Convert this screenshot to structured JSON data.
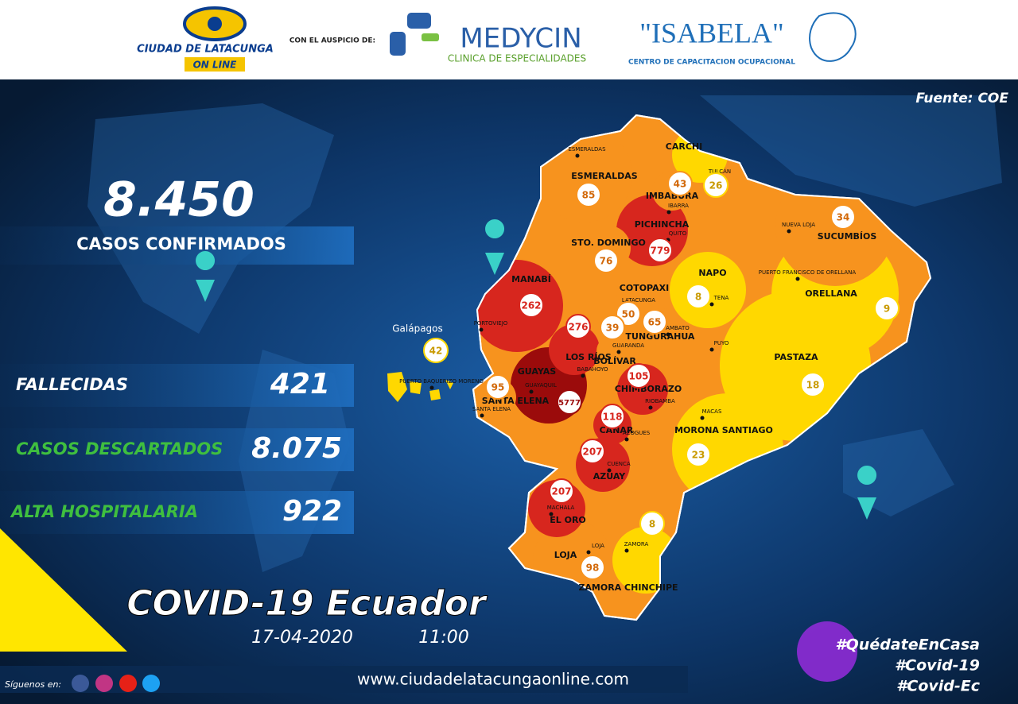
{
  "header": {
    "logo_title": "CIUDAD DE LATACUNGA",
    "logo_subtitle": "ON LINE",
    "sponsor_label": "CON EL AUSPICIO DE:",
    "sponsor1_name": "MEDYCIN",
    "sponsor1_tagline": "CLINICA DE ESPECIALIDADES",
    "sponsor2_name": "\"ISABELA\"",
    "sponsor2_tagline": "CENTRO DE CAPACITACION OCUPACIONAL"
  },
  "source": "Fuente: COE",
  "confirmed": {
    "value": "8.450",
    "label": "CASOS CONFIRMADOS"
  },
  "stats": [
    {
      "label": "FALLECIDAS",
      "value": "421",
      "color": "#ffffff"
    },
    {
      "label": "CASOS DESCARTADOS",
      "value": "8.075",
      "color": "#3fbf3f"
    },
    {
      "label": "ALTA HOSPITALARIA",
      "value": "922",
      "color": "#3fbf3f"
    }
  ],
  "title": "COVID-19 Ecuador",
  "date": "17-04-2020",
  "time": "11:00",
  "provinces": [
    {
      "name": "ESMERALDAS",
      "cases": 85,
      "city": "ESMERALDAS",
      "color": "#f7931e"
    },
    {
      "name": "CARCHI",
      "cases": 26,
      "city": "TULCÁN",
      "color": "#ffd800"
    },
    {
      "name": "IMBABURA",
      "cases": 43,
      "city": "IBARRA",
      "color": "#f7931e"
    },
    {
      "name": "PICHINCHA",
      "cases": 779,
      "city": "QUITO",
      "color": "#d7261e"
    },
    {
      "name": "SUCUMBÍOS",
      "cases": 34,
      "city": "NUEVA LOJA",
      "color": "#f7931e"
    },
    {
      "name": "STO. DOMINGO",
      "cases": 76,
      "city": null,
      "color": "#f7931e"
    },
    {
      "name": "MANABÍ",
      "cases": 262,
      "city": "PORTOVIEJO",
      "color": "#d7261e"
    },
    {
      "name": "NAPO",
      "cases": 8,
      "city": "TENA",
      "color": "#ffd800"
    },
    {
      "name": "ORELLANA",
      "cases": 9,
      "city": "PUERTO FRANCISCO DE ORELLANA",
      "color": "#ffd800"
    },
    {
      "name": "COTOPAXI",
      "cases": 50,
      "city": "LATACUNGA",
      "color": "#f7931e"
    },
    {
      "name": "TUNGURAHUA",
      "cases": 65,
      "city": "AMBATO",
      "color": "#f7931e"
    },
    {
      "name": "BOLÍVAR",
      "cases": 39,
      "city": "GUARANDA",
      "color": "#f7931e"
    },
    {
      "name": "LOS RÍOS",
      "cases": 276,
      "city": "BABAHOYO",
      "color": "#d7261e"
    },
    {
      "name": "Galápagos",
      "cases": 42,
      "city": "PUERTO BAQUERIZO MORENO",
      "color": "#ffd800"
    },
    {
      "name": "SANTA ELENA",
      "cases": 95,
      "city": "SANTA ELENA",
      "color": "#f7931e"
    },
    {
      "name": "GUAYAS",
      "cases": 5777,
      "city": "GUAYAQUIL",
      "color": "#9b0b0b"
    },
    {
      "name": "CHIMBORAZO",
      "cases": 105,
      "city": "RIOBAMBA",
      "color": "#d7261e"
    },
    {
      "name": "PASTAZA",
      "cases": 18,
      "city": "PUYO",
      "color": "#ffd800"
    },
    {
      "name": "CAÑAR",
      "cases": 118,
      "city": "AZOGUES",
      "color": "#d7261e"
    },
    {
      "name": "MORONA SANTIAGO",
      "cases": 23,
      "city": "MACAS",
      "color": "#ffd800"
    },
    {
      "name": "AZUAY",
      "cases": 207,
      "city": "CUENCA",
      "color": "#d7261e"
    },
    {
      "name": "EL ORO",
      "cases": 207,
      "city": "MACHALA",
      "color": "#d7261e"
    },
    {
      "name": "LOJA",
      "cases": 98,
      "city": "LOJA",
      "color": "#f7931e"
    },
    {
      "name": "ZAMORA CHINCHIPE",
      "cases": 8,
      "city": "ZAMORA",
      "color": "#ffd800"
    }
  ],
  "footer": {
    "follow": "Síguenos en:",
    "url": "www.ciudadelatacungaonline.com",
    "hashtags": [
      "#QuédateEnCasa",
      "#Covid-19",
      "#Covid-Ec"
    ]
  }
}
